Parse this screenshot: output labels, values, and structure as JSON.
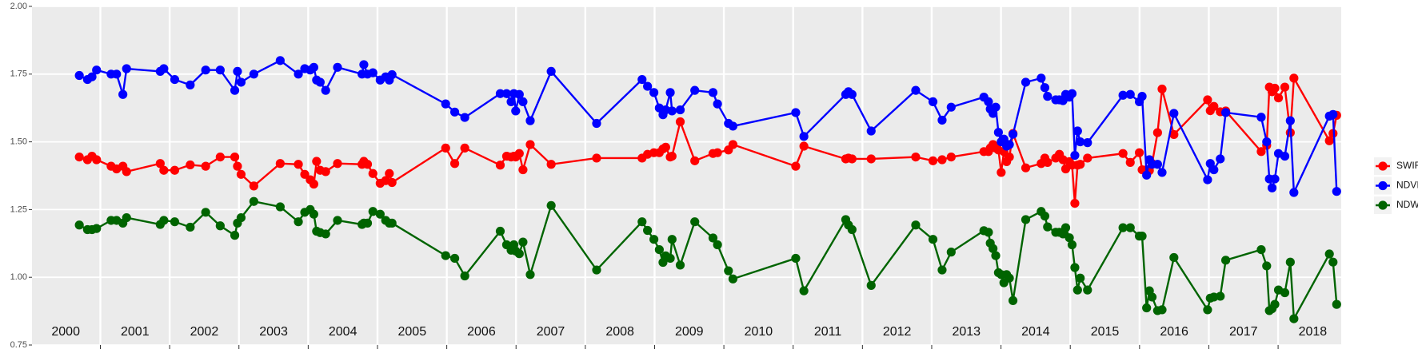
{
  "chart_data": {
    "type": "line",
    "x": [
      2000.696,
      2000.814,
      2000.879,
      2000.945,
      2001.155,
      2001.234,
      2001.325,
      2001.378,
      2001.864,
      2001.916,
      2002.073,
      2002.297,
      2002.52,
      2002.73,
      2002.94,
      2002.979,
      2003.031,
      2003.215,
      2003.596,
      2003.858,
      2003.95,
      2004.029,
      2004.081,
      2004.121,
      2004.173,
      2004.252,
      2004.423,
      2004.777,
      2004.803,
      2004.856,
      2004.934,
      2005.039,
      2005.118,
      2005.171,
      2005.21,
      2005.984,
      2006.115,
      2006.26,
      2006.772,
      2006.864,
      2006.929,
      2006.969,
      2006.995,
      2007.047,
      2007.1,
      2007.205,
      2007.507,
      2008.163,
      2008.819,
      2008.898,
      2008.99,
      2009.068,
      2009.121,
      2009.16,
      2009.226,
      2009.252,
      2009.37,
      2009.58,
      2009.843,
      2009.908,
      2010.066,
      2010.131,
      2011.037,
      2011.155,
      2011.759,
      2011.798,
      2011.85,
      2012.126,
      2012.769,
      2013.018,
      2013.15,
      2013.281,
      2013.753,
      2013.819,
      2013.845,
      2013.885,
      2013.924,
      2013.963,
      2014.003,
      2014.042,
      2014.081,
      2014.121,
      2014.173,
      2014.357,
      2014.58,
      2014.633,
      2014.672,
      2014.79,
      2014.843,
      2014.895,
      2014.934,
      2014.987,
      2015.026,
      2015.066,
      2015.105,
      2015.144,
      2015.249,
      2015.761,
      2015.866,
      2015.997,
      2016.037,
      2016.102,
      2016.142,
      2016.181,
      2016.26,
      2016.325,
      2016.496,
      2016.982,
      2017.021,
      2017.073,
      2017.165,
      2017.244,
      2017.756,
      2017.835,
      2017.874,
      2017.913,
      2017.953,
      2018.005,
      2018.097,
      2018.176,
      2018.228,
      2018.74,
      2018.793,
      2018.845
    ],
    "series": [
      {
        "name": "SWIR",
        "color": "#ff0000",
        "values": [
          1.444,
          1.434,
          1.447,
          1.434,
          1.41,
          1.4,
          1.41,
          1.39,
          1.42,
          1.395,
          1.395,
          1.415,
          1.41,
          1.444,
          1.444,
          1.41,
          1.38,
          1.337,
          1.42,
          1.417,
          1.38,
          1.36,
          1.344,
          1.428,
          1.395,
          1.39,
          1.42,
          1.417,
          1.428,
          1.417,
          1.383,
          1.347,
          1.357,
          1.383,
          1.35,
          1.477,
          1.42,
          1.477,
          1.414,
          1.447,
          1.444,
          1.447,
          1.444,
          1.457,
          1.397,
          1.49,
          1.417,
          1.44,
          1.44,
          1.454,
          1.46,
          1.46,
          1.474,
          1.48,
          1.444,
          1.447,
          1.574,
          1.43,
          1.457,
          1.46,
          1.47,
          1.49,
          1.41,
          1.484,
          1.437,
          1.44,
          1.437,
          1.437,
          1.444,
          1.43,
          1.434,
          1.444,
          1.464,
          1.464,
          1.477,
          1.49,
          1.477,
          1.47,
          1.387,
          1.464,
          1.427,
          1.444,
          1.531,
          1.404,
          1.42,
          1.44,
          1.424,
          1.44,
          1.454,
          1.434,
          1.4,
          1.427,
          1.414,
          1.273,
          1.414,
          1.417,
          1.44,
          1.457,
          1.424,
          1.46,
          1.397,
          1.397,
          1.394,
          1.42,
          1.534,
          1.695,
          1.527,
          1.655,
          1.615,
          1.631,
          1.611,
          1.614,
          1.464,
          1.487,
          1.702,
          1.685,
          1.698,
          1.662,
          1.702,
          1.534,
          1.735,
          1.504,
          1.531,
          1.598
        ]
      },
      {
        "name": "NDVI",
        "color": "#0000ff",
        "values": [
          1.745,
          1.73,
          1.74,
          1.765,
          1.75,
          1.75,
          1.675,
          1.77,
          1.76,
          1.77,
          1.73,
          1.71,
          1.765,
          1.765,
          1.69,
          1.76,
          1.72,
          1.75,
          1.8,
          1.75,
          1.77,
          1.765,
          1.775,
          1.728,
          1.72,
          1.69,
          1.775,
          1.75,
          1.785,
          1.75,
          1.755,
          1.728,
          1.74,
          1.728,
          1.748,
          1.64,
          1.61,
          1.59,
          1.678,
          1.678,
          1.648,
          1.678,
          1.614,
          1.675,
          1.648,
          1.578,
          1.76,
          1.568,
          1.73,
          1.705,
          1.682,
          1.625,
          1.6,
          1.618,
          1.682,
          1.614,
          1.618,
          1.69,
          1.682,
          1.64,
          1.568,
          1.558,
          1.608,
          1.52,
          1.675,
          1.685,
          1.675,
          1.54,
          1.69,
          1.648,
          1.58,
          1.628,
          1.665,
          1.648,
          1.621,
          1.605,
          1.628,
          1.535,
          1.5,
          1.51,
          1.484,
          1.49,
          1.528,
          1.72,
          1.735,
          1.7,
          1.668,
          1.655,
          1.655,
          1.652,
          1.675,
          1.665,
          1.678,
          1.45,
          1.54,
          1.5,
          1.497,
          1.672,
          1.675,
          1.648,
          1.668,
          1.377,
          1.434,
          1.417,
          1.417,
          1.387,
          1.605,
          1.36,
          1.42,
          1.397,
          1.437,
          1.608,
          1.591,
          1.5,
          1.363,
          1.33,
          1.363,
          1.457,
          1.447,
          1.578,
          1.313,
          1.595,
          1.601,
          1.317
        ]
      },
      {
        "name": "NDWI",
        "color": "#006400",
        "values": [
          1.193,
          1.176,
          1.176,
          1.18,
          1.21,
          1.21,
          1.2,
          1.22,
          1.195,
          1.21,
          1.205,
          1.185,
          1.24,
          1.19,
          1.155,
          1.2,
          1.22,
          1.28,
          1.26,
          1.205,
          1.24,
          1.25,
          1.233,
          1.17,
          1.165,
          1.16,
          1.21,
          1.195,
          1.2,
          1.2,
          1.243,
          1.233,
          1.21,
          1.2,
          1.2,
          1.08,
          1.07,
          1.005,
          1.17,
          1.12,
          1.1,
          1.12,
          1.097,
          1.087,
          1.13,
          1.01,
          1.265,
          1.027,
          1.205,
          1.173,
          1.14,
          1.102,
          1.055,
          1.079,
          1.07,
          1.14,
          1.045,
          1.205,
          1.145,
          1.12,
          1.024,
          0.994,
          1.07,
          0.95,
          1.213,
          1.193,
          1.176,
          0.97,
          1.193,
          1.14,
          1.027,
          1.093,
          1.172,
          1.166,
          1.126,
          1.106,
          1.08,
          1.017,
          1.01,
          0.98,
          1.01,
          0.997,
          0.914,
          1.213,
          1.243,
          1.226,
          1.186,
          1.166,
          1.166,
          1.16,
          1.183,
          1.146,
          1.12,
          1.036,
          0.953,
          0.997,
          0.953,
          1.183,
          1.183,
          1.152,
          1.152,
          0.887,
          0.95,
          0.927,
          0.877,
          0.88,
          1.073,
          0.88,
          0.923,
          0.927,
          0.93,
          1.063,
          1.102,
          1.042,
          0.877,
          0.884,
          0.9,
          0.953,
          0.943,
          1.056,
          0.847,
          1.086,
          1.056,
          0.9
        ]
      }
    ],
    "xlim": [
      2000.013,
      2018.911
    ],
    "xgrid": [
      2001,
      2002,
      2003,
      2004,
      2005,
      2006,
      2007,
      2008,
      2009,
      2010,
      2011,
      2012,
      2013,
      2014,
      2015,
      2016,
      2017,
      2018
    ],
    "year_labels": [
      {
        "value": 2000.5,
        "label": "2000"
      },
      {
        "value": 2001.5,
        "label": "2001"
      },
      {
        "value": 2002.5,
        "label": "2002"
      },
      {
        "value": 2003.5,
        "label": "2003"
      },
      {
        "value": 2004.5,
        "label": "2004"
      },
      {
        "value": 2005.5,
        "label": "2005"
      },
      {
        "value": 2006.5,
        "label": "2006"
      },
      {
        "value": 2007.5,
        "label": "2007"
      },
      {
        "value": 2008.5,
        "label": "2008"
      },
      {
        "value": 2009.5,
        "label": "2009"
      },
      {
        "value": 2010.5,
        "label": "2010"
      },
      {
        "value": 2011.5,
        "label": "2011"
      },
      {
        "value": 2012.5,
        "label": "2012"
      },
      {
        "value": 2013.5,
        "label": "2013"
      },
      {
        "value": 2014.5,
        "label": "2014"
      },
      {
        "value": 2015.5,
        "label": "2015"
      },
      {
        "value": 2016.5,
        "label": "2016"
      },
      {
        "value": 2017.5,
        "label": "2017"
      },
      {
        "value": 2018.5,
        "label": "2018"
      }
    ],
    "ylim": [
      0.75,
      2.0
    ],
    "yticks": [
      {
        "value": 0.75,
        "label": "0.75"
      },
      {
        "value": 1,
        "label": "1.00"
      },
      {
        "value": 1.25,
        "label": "1.25"
      },
      {
        "value": 1.5,
        "label": "1.50"
      },
      {
        "value": 1.75,
        "label": "1.75"
      },
      {
        "value": 2,
        "label": "2.00"
      }
    ],
    "grid": true,
    "legend": "right"
  }
}
